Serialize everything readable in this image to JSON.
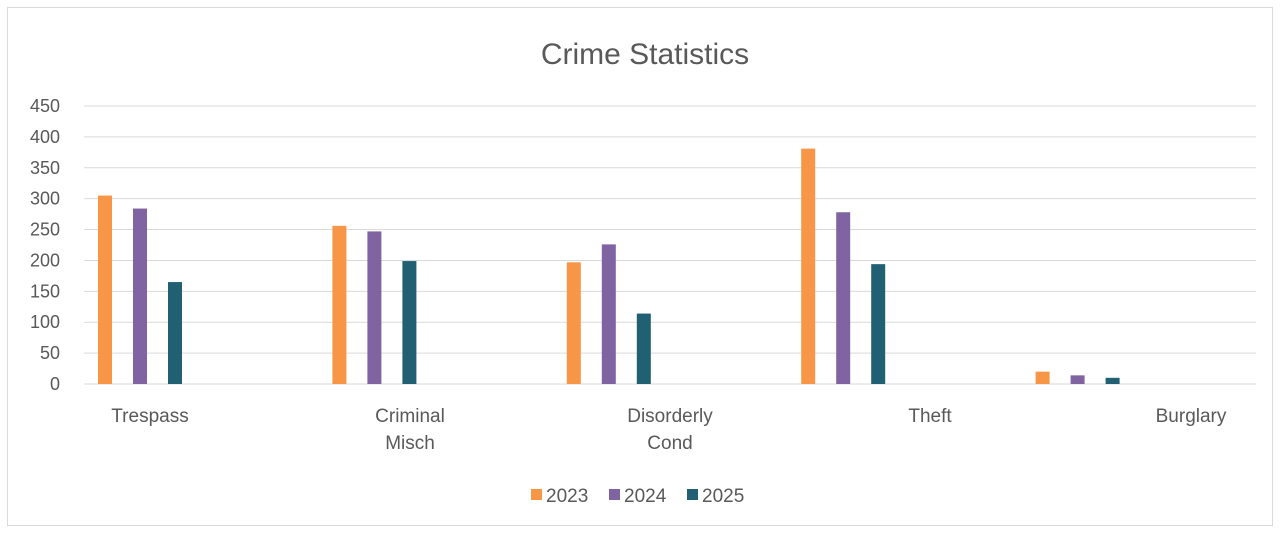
{
  "chart_data": {
    "type": "bar",
    "title": "Crime Statistics",
    "xlabel": "",
    "ylabel": "",
    "categories": [
      [
        "Trespass"
      ],
      [
        "Criminal",
        "Misch"
      ],
      [
        "Disorderly",
        "Cond"
      ],
      [
        "Theft"
      ],
      [
        "Burglary"
      ]
    ],
    "series": [
      {
        "name": "2023",
        "color": "#F79646",
        "values": [
          305,
          256,
          197,
          381,
          20
        ]
      },
      {
        "name": "2024",
        "color": "#8064A2",
        "values": [
          284,
          247,
          226,
          278,
          14
        ]
      },
      {
        "name": "2025",
        "color": "#215F73",
        "values": [
          165,
          199,
          114,
          194,
          10
        ]
      }
    ],
    "ylim": [
      0,
      450
    ],
    "yticks": [
      0,
      50,
      100,
      150,
      200,
      250,
      300,
      350,
      400,
      450
    ],
    "grid": true,
    "legend": "bottom"
  }
}
